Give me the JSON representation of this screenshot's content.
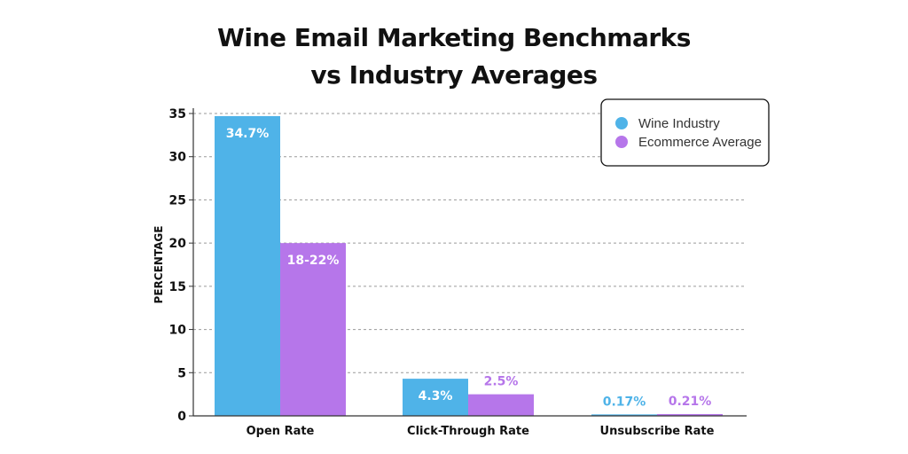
{
  "chart_data": {
    "type": "bar",
    "title_lines": [
      "Wine Email Marketing Benchmarks",
      "vs Industry Averages"
    ],
    "ylabel": "PERCENTAGE",
    "xlabel": "",
    "ylim": [
      0,
      35
    ],
    "yticks": [
      0,
      5,
      10,
      15,
      20,
      25,
      30,
      35
    ],
    "grid": "horizontal-dashed",
    "legend_position": "top-right",
    "categories": [
      "Open Rate",
      "Click-Through Rate",
      "Unsubscribe Rate"
    ],
    "series": [
      {
        "name": "Wine Industry",
        "color": "#4fb3e8",
        "values": [
          34.7,
          4.3,
          0.17
        ],
        "labels": [
          "34.7%",
          "4.3%",
          "0.17%"
        ]
      },
      {
        "name": "Ecommerce Average",
        "color": "#b676ea",
        "values": [
          20,
          2.5,
          0.21
        ],
        "labels": [
          "18-22%",
          "2.5%",
          "0.21%"
        ]
      }
    ]
  }
}
